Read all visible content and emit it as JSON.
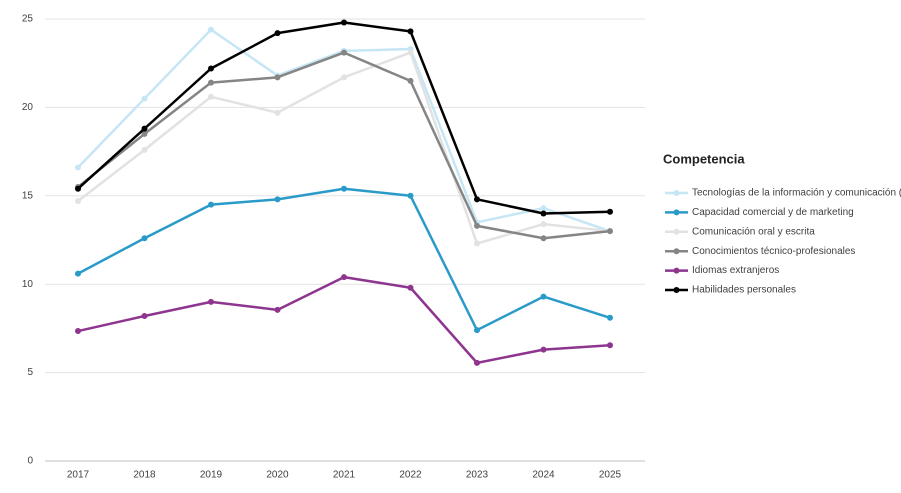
{
  "chart_data": {
    "type": "line",
    "categories": [
      "2017",
      "2018",
      "2019",
      "2020",
      "2021",
      "2022",
      "2023",
      "2024",
      "2025"
    ],
    "ylim": [
      0,
      25
    ],
    "yticks": [
      0,
      5,
      10,
      15,
      20,
      25
    ],
    "grid": true,
    "legend_title": "Competencia",
    "legend": "right",
    "series": [
      {
        "name": "Tecnologías de la información y comunicación (TIC",
        "color": "#c6e6f5",
        "values": [
          16.6,
          20.5,
          24.4,
          21.8,
          23.2,
          23.3,
          13.5,
          14.3,
          13.0
        ]
      },
      {
        "name": "Capacidad comercial y de marketing",
        "color": "#2a9bc9",
        "values": [
          10.6,
          12.6,
          14.5,
          14.8,
          15.4,
          15.0,
          7.4,
          9.3,
          8.1
        ]
      },
      {
        "name": "Comunicación oral y escrita",
        "color": "#e2e2e2",
        "values": [
          14.7,
          17.6,
          20.6,
          19.7,
          21.7,
          23.1,
          12.3,
          13.4,
          13.0
        ]
      },
      {
        "name": "Conocimientos técnico-profesionales",
        "color": "#858585",
        "values": [
          15.5,
          18.5,
          21.4,
          21.7,
          23.1,
          21.5,
          13.3,
          12.6,
          13.0
        ]
      },
      {
        "name": "Idiomas extranjeros",
        "color": "#8e3590",
        "values": [
          7.35,
          8.2,
          9.0,
          8.55,
          10.4,
          9.8,
          5.55,
          6.3,
          6.55
        ]
      },
      {
        "name": "Habilidades personales",
        "color": "#000000",
        "values": [
          15.4,
          18.8,
          22.2,
          24.2,
          24.8,
          24.3,
          14.8,
          14.0,
          14.1
        ]
      }
    ]
  }
}
